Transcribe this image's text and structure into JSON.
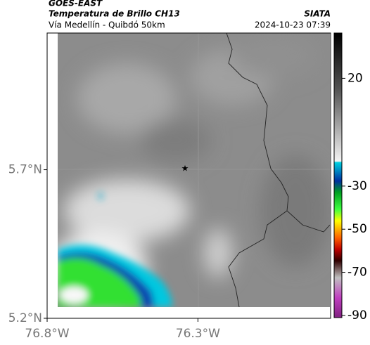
{
  "header": {
    "title": "GOES-EAST",
    "subtitle": "Temperatura de Brillo CH13",
    "source": "SIATA",
    "route": "Vía Medellín - Quibdó 50km",
    "datetime": "2024-10-23 07:39"
  },
  "map": {
    "xlim": [
      -76.8,
      -75.86
    ],
    "ylim": [
      5.2,
      6.16
    ],
    "xticks": [
      {
        "value": -76.8,
        "label": "76.8°W"
      },
      {
        "value": -76.3,
        "label": "76.3°W"
      }
    ],
    "yticks": [
      {
        "value": 5.7,
        "label": "5.7°N"
      },
      {
        "value": 5.2,
        "label": "5.2°N"
      }
    ]
  },
  "colorbar": {
    "lim": [
      -91,
      41
    ],
    "ticks": [
      20,
      -30,
      -50,
      -70,
      -90
    ]
  }
}
